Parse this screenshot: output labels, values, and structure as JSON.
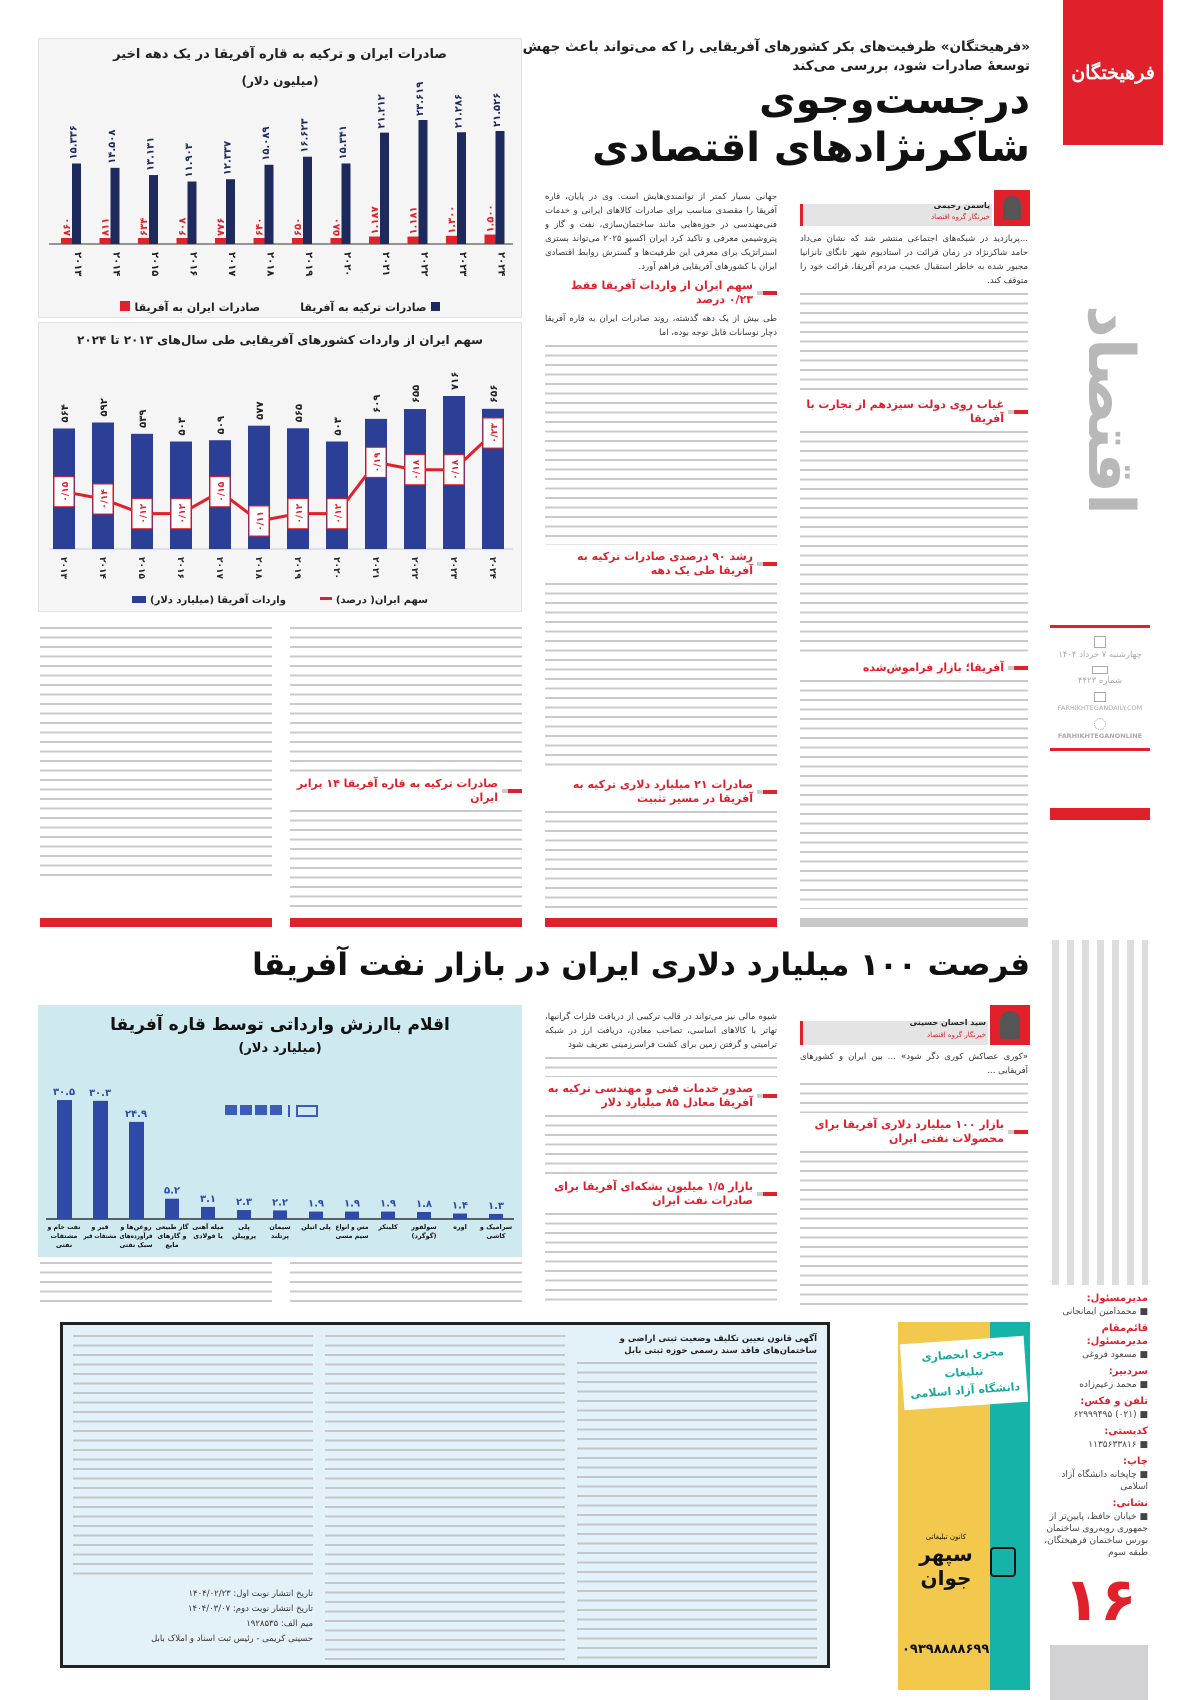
{
  "masthead": {
    "logo_text": "فرهیختگان",
    "section": "اقتصاد",
    "date": "چهارشنبه ۷ خرداد ۱۴۰۴",
    "issue": "شماره ۴۴۲۳",
    "website": "FARHIKHTEGANDAILY.COM",
    "social": "FARHIKHTEGANONLINE",
    "page_number": "۱۶"
  },
  "article1": {
    "lead": "«فرهیختگان» ظرفیت‌های بکر کشورهای آفریقایی را که می‌تواند باعث جهش توسعهٔ صادرات شود، بررسی می‌کند",
    "headline_1": "درجست‌وجوی",
    "headline_2": "شاکرنژادهای اقتصادی",
    "author": "یاسمن رحیمی",
    "author_role": "خبرنگار گروه اقتصاد",
    "intro": "...پربازدید در شبکه‌های اجتماعی منتشر شد که نشان می‌داد حامد شاکرنژاد در زمان قرائت در استادیوم شهر تانگای تانزانیا مجبور شده به خاطر استقبال عجیب مردم آفریقا، قرائت خود را متوقف کند.",
    "col2_intro": "جهانی بسیار کمتر از توانمندی‌هایش است. وی در پایان، قاره آفریقا را مقصدی مناسب برای صادرات کالاهای ایرانی و خدمات فنی‌مهندسی در حوزه‌هایی مانند ساختمان‌سازی، نفت و گاز و پتروشیمی معرفی و تاکید کرد ایران اکسپو ۲۰۲۵ می‌تواند بستری استراتژیک برای معرفی این ظرفیت‌ها و گسترش روابط اقتصادی ایران با کشورهای آفریقایی فراهم آورد.",
    "col2_para": "طی بیش از یک دهه گذشته، روند صادرات ایران به قاره آفریقا دچار نوسانات قابل توجه بوده، اما",
    "subheads": [
      "غیاب روی دولت سیزدهم از تجارت با آفریقا",
      "آفریقا؛ بازار فراموش‌شده",
      "سهم ایران از واردات آفریقا فقط ۰/۲۳ درصد",
      "رشد ۹۰ درصدی صادرات ترکیه به آفریقا طی یک دهه",
      "صادرات ۲۱ میلیارد دلاری ترکیه به آفریقا در مسیر تثبیت",
      "صادرات ترکیه به قاره آفریقا ۱۴ برابر ایران"
    ]
  },
  "article2": {
    "headline": "فرصت ۱۰۰ میلیارد دلاری ایران در بازار نفت آفریقا",
    "author": "سید احسان حسینی",
    "author_role": "خبرنگار گروه اقتصاد",
    "intro": "«کوری عصاکش کوری دگر شود» ... بین ایران و کشورهای آفریقایی ...",
    "col2_intro": "شیوه مالی نیز می‌تواند در قالب ترکیبی از دریافت فلزات گرانبها، تهاتر با کالاهای اساسی، تصاحب معادن، دریافت ارز در شبکه ترامیتی و گرفتن زمین برای کشت فراسرزمینی تعریف شود",
    "subheads": [
      "بازار ۱۰۰ میلیارد دلاری آفریقا برای محصولات نفتی ایران",
      "صدور خدمات فنی و مهندسی ترکیه به آفریقا معادل ۸۵ میلیارد دلار",
      "بازار ۱/۵ میلیون بشکه‌ای آفریقا برای صادرات نفت ایران"
    ]
  },
  "notice": {
    "title": "آگهی قانون تعیین تکلیف وضعیت ثبتی اراضی و ساختمان‌های فاقد سند رسمی حوزه ثبتی بابل",
    "date1": "تاریخ انتشار نوبت اول: ۱۴۰۴/۰۲/۲۳",
    "date2": "تاریخ انتشار نوبت دوم: ۱۴۰۴/۰۳/۰۷",
    "code": "میم الف: ۱۹۲۸۵۳۵",
    "signature": "حسینی کریمی - رئیس ثبت اسناد و املاک بابل"
  },
  "ad": {
    "line1": "مجری انحصاری تبلیغات",
    "line2": "دانشگاه آزاد اسلامی",
    "brand_small": "کانون تبلیغاتی",
    "brand_1": "سپهر",
    "brand_2": "جوان",
    "phone": "۰۹۳۹۸۸۸۸۶۹۹"
  },
  "staff": [
    {
      "k": "مدیرمسئول:",
      "v": "محمدامین ایمانجانی"
    },
    {
      "k": "قائم‌مقام مدیرمسئول:",
      "v": "مسعود فروغی"
    },
    {
      "k": "سردبیر:",
      "v": "محمد زعیم‌زاده"
    },
    {
      "k": "تلفن و فکس:",
      "v": "(۰۲۱) ۶۲۹۹۹۴۹۵"
    },
    {
      "k": "کدپستی:",
      "v": "۱۱۳۵۶۳۳۸۱۶"
    },
    {
      "k": "چاپ:",
      "v": "چاپخانه دانشگاه آزاد اسلامی"
    },
    {
      "k": "نشانی:",
      "v": "خیابان حافظ، پایین‌تر از جمهوری روبه‌روی ساختمان بورس ساختمان فرهیختگان، طبقه سوم"
    }
  ],
  "chart_data": [
    {
      "type": "bar",
      "title": "صادرات ایران و ترکیه به قاره آفریقا در یک دهه اخیر",
      "subtitle": "(میلیون دلار)",
      "categories": [
        "۲۰۱۳",
        "۲۰۱۴",
        "۲۰۱۵",
        "۲۰۱۶",
        "۲۰۱۷",
        "۲۰۱۸",
        "۲۰۱۹",
        "۲۰۲۰",
        "۲۰۲۱",
        "۲۰۲۲",
        "۲۰۲۳",
        "۲۰۲۴"
      ],
      "series": [
        {
          "name": "صادرات ترکیه به آفریقا",
          "color": "#1f2a5c",
          "values": [
            15336,
            14508,
            13131,
            11903,
            12337,
            15089,
            16623,
            15341,
            21212,
            23619,
            21286,
            21526
          ]
        },
        {
          "name": "صادرات ایران به آفریقا",
          "color": "#e0202a",
          "values": [
            860,
            811,
            634,
            608,
            776,
            640,
            650,
            580,
            1187,
            1181,
            1300,
            1500
          ]
        }
      ],
      "legend": "bottom"
    },
    {
      "type": "bar+line",
      "title": "سهم ایران از واردات کشورهای آفریقایی طی سال‌های ۲۰۱۳ تا ۲۰۲۴",
      "categories": [
        "۲۰۱۳",
        "۲۰۱۴",
        "۲۰۱۵",
        "۲۰۱۶",
        "۲۰۱۷",
        "۲۰۱۸",
        "۲۰۱۹",
        "۲۰۲۰",
        "۲۰۲۱",
        "۲۰۲۲",
        "۲۰۲۳",
        "۲۰۲۴"
      ],
      "series": [
        {
          "name": "واردات آفریقا (میلیارد دلار)",
          "color": "#2c3f96",
          "values": [
            564,
            592,
            539,
            503,
            509,
            577,
            565,
            503,
            609,
            655,
            716,
            656
          ]
        },
        {
          "name": "سهم ایران( درصد)",
          "color": "#e0202a",
          "values": [
            0.15,
            0.14,
            0.12,
            0.12,
            0.15,
            0.11,
            0.12,
            0.12,
            0.19,
            0.18,
            0.18,
            0.23
          ]
        }
      ],
      "legend": "bottom"
    },
    {
      "type": "bar",
      "title": "اقلام باارزش وارداتی توسط قاره آفریقا",
      "subtitle": "(میلیارد دلار)",
      "categories": [
        "نفت خام و مشتقات نفتی",
        "قیر و مشتقات قیر",
        "روغن‌ها و فرآورده‌های سبک نفتی",
        "گاز طبیعی و گازهای مایع",
        "میله آهنی یا فولادی",
        "پلی پروپیلن",
        "سیمان پرتلند",
        "پلی اتیلن",
        "مس و انواع سیم مسی",
        "کلینکر",
        "سولفور (گوگرد)",
        "اوره",
        "سرامیک و کاشی"
      ],
      "values": [
        30.5,
        30.3,
        24.9,
        5.2,
        3.1,
        2.3,
        2.2,
        1.9,
        1.9,
        1.9,
        1.8,
        1.4,
        1.3
      ],
      "color": "#2f4aa6"
    }
  ]
}
